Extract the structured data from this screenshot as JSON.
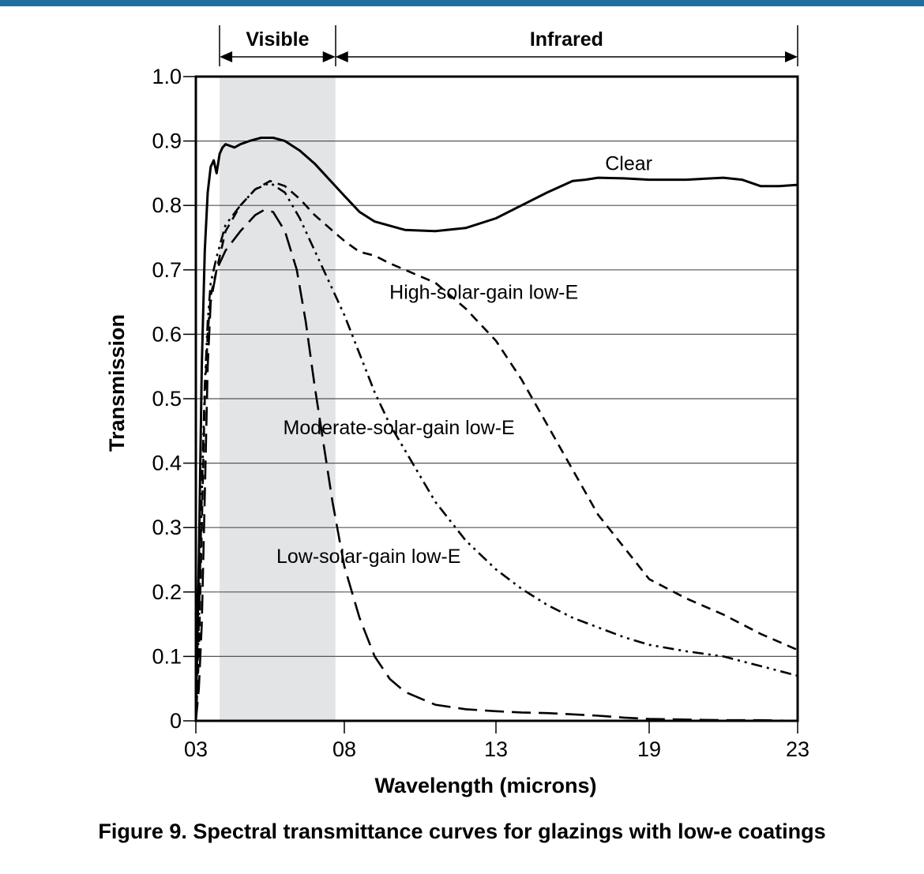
{
  "figure": {
    "caption": "Figure 9. Spectral transmittance curves for glazings with low-e coatings",
    "accent_color": "#1f6fa0"
  },
  "chart_data": {
    "type": "line",
    "xlabel": "Wavelength (microns)",
    "ylabel": "Transmission",
    "x_ticks": [
      {
        "value": 0.3,
        "label": "03"
      },
      {
        "value": 0.8,
        "label": "08"
      },
      {
        "value": 1.3,
        "label": "13"
      },
      {
        "value": 1.9,
        "label": "19"
      },
      {
        "value": 2.3,
        "label": "23"
      }
    ],
    "y_ticks": [
      0,
      0.1,
      0.2,
      0.3,
      0.4,
      0.5,
      0.6,
      0.7,
      0.8,
      0.9,
      1.0
    ],
    "y_tick_labels": [
      "0",
      "0.1",
      "0.2",
      "0.3",
      "0.4",
      "0.5",
      "0.6",
      "0.7",
      "0.8",
      "0.9",
      "1.0"
    ],
    "ylim": [
      0,
      1.0
    ],
    "grid": "horizontal",
    "regions": [
      {
        "label": "Visible",
        "x_start": 0.38,
        "x_end": 0.77,
        "shaded": true
      },
      {
        "label": "Infrared",
        "x_start": 0.77,
        "x_end": 2.3,
        "shaded": false
      }
    ],
    "series": [
      {
        "name": "Clear",
        "style": "solid",
        "points": [
          [
            0.3,
            0.0
          ],
          [
            0.31,
            0.25
          ],
          [
            0.32,
            0.55
          ],
          [
            0.33,
            0.73
          ],
          [
            0.34,
            0.82
          ],
          [
            0.35,
            0.86
          ],
          [
            0.36,
            0.87
          ],
          [
            0.37,
            0.85
          ],
          [
            0.38,
            0.88
          ],
          [
            0.39,
            0.89
          ],
          [
            0.4,
            0.895
          ],
          [
            0.43,
            0.89
          ],
          [
            0.45,
            0.895
          ],
          [
            0.48,
            0.9
          ],
          [
            0.52,
            0.905
          ],
          [
            0.56,
            0.905
          ],
          [
            0.6,
            0.9
          ],
          [
            0.65,
            0.885
          ],
          [
            0.7,
            0.865
          ],
          [
            0.75,
            0.84
          ],
          [
            0.8,
            0.815
          ],
          [
            0.85,
            0.79
          ],
          [
            0.9,
            0.775
          ],
          [
            1.0,
            0.762
          ],
          [
            1.1,
            0.76
          ],
          [
            1.2,
            0.765
          ],
          [
            1.3,
            0.78
          ],
          [
            1.4,
            0.8
          ],
          [
            1.5,
            0.82
          ],
          [
            1.6,
            0.838
          ],
          [
            1.65,
            0.84
          ],
          [
            1.7,
            0.843
          ],
          [
            1.8,
            0.842
          ],
          [
            1.9,
            0.84
          ],
          [
            2.0,
            0.84
          ],
          [
            2.1,
            0.843
          ],
          [
            2.15,
            0.84
          ],
          [
            2.2,
            0.83
          ],
          [
            2.25,
            0.83
          ],
          [
            2.3,
            0.832
          ]
        ]
      },
      {
        "name": "High-solar-gain low-E",
        "style": "dashed",
        "points": [
          [
            0.3,
            0.0
          ],
          [
            0.31,
            0.1
          ],
          [
            0.32,
            0.3
          ],
          [
            0.33,
            0.5
          ],
          [
            0.34,
            0.6
          ],
          [
            0.35,
            0.66
          ],
          [
            0.37,
            0.7
          ],
          [
            0.4,
            0.76
          ],
          [
            0.45,
            0.8
          ],
          [
            0.5,
            0.825
          ],
          [
            0.55,
            0.838
          ],
          [
            0.6,
            0.83
          ],
          [
            0.65,
            0.81
          ],
          [
            0.7,
            0.785
          ],
          [
            0.75,
            0.765
          ],
          [
            0.8,
            0.745
          ],
          [
            0.85,
            0.728
          ],
          [
            0.9,
            0.722
          ],
          [
            0.95,
            0.71
          ],
          [
            1.0,
            0.7
          ],
          [
            1.1,
            0.68
          ],
          [
            1.2,
            0.64
          ],
          [
            1.3,
            0.59
          ],
          [
            1.4,
            0.53
          ],
          [
            1.5,
            0.46
          ],
          [
            1.6,
            0.39
          ],
          [
            1.7,
            0.32
          ],
          [
            1.8,
            0.27
          ],
          [
            1.9,
            0.22
          ],
          [
            2.0,
            0.19
          ],
          [
            2.1,
            0.165
          ],
          [
            2.2,
            0.135
          ],
          [
            2.3,
            0.11
          ]
        ]
      },
      {
        "name": "Moderate-solar-gain low-E",
        "style": "dash-dot-dot",
        "points": [
          [
            0.3,
            0.0
          ],
          [
            0.31,
            0.15
          ],
          [
            0.32,
            0.35
          ],
          [
            0.33,
            0.52
          ],
          [
            0.34,
            0.62
          ],
          [
            0.35,
            0.68
          ],
          [
            0.37,
            0.72
          ],
          [
            0.4,
            0.77
          ],
          [
            0.45,
            0.8
          ],
          [
            0.5,
            0.825
          ],
          [
            0.55,
            0.835
          ],
          [
            0.6,
            0.82
          ],
          [
            0.65,
            0.78
          ],
          [
            0.7,
            0.73
          ],
          [
            0.75,
            0.68
          ],
          [
            0.8,
            0.63
          ],
          [
            0.85,
            0.57
          ],
          [
            0.9,
            0.51
          ],
          [
            0.95,
            0.46
          ],
          [
            1.0,
            0.42
          ],
          [
            1.1,
            0.34
          ],
          [
            1.2,
            0.28
          ],
          [
            1.3,
            0.235
          ],
          [
            1.4,
            0.205
          ],
          [
            1.5,
            0.18
          ],
          [
            1.6,
            0.16
          ],
          [
            1.7,
            0.145
          ],
          [
            1.8,
            0.13
          ],
          [
            1.9,
            0.118
          ],
          [
            2.0,
            0.108
          ],
          [
            2.1,
            0.1
          ],
          [
            2.2,
            0.085
          ],
          [
            2.3,
            0.07
          ]
        ]
      },
      {
        "name": "Low-solar-gain low-E",
        "style": "long-dashed",
        "points": [
          [
            0.3,
            0.0
          ],
          [
            0.31,
            0.05
          ],
          [
            0.32,
            0.15
          ],
          [
            0.33,
            0.35
          ],
          [
            0.34,
            0.55
          ],
          [
            0.35,
            0.65
          ],
          [
            0.37,
            0.7
          ],
          [
            0.4,
            0.73
          ],
          [
            0.45,
            0.76
          ],
          [
            0.5,
            0.785
          ],
          [
            0.53,
            0.793
          ],
          [
            0.56,
            0.79
          ],
          [
            0.6,
            0.76
          ],
          [
            0.64,
            0.7
          ],
          [
            0.67,
            0.62
          ],
          [
            0.7,
            0.52
          ],
          [
            0.73,
            0.43
          ],
          [
            0.76,
            0.34
          ],
          [
            0.8,
            0.24
          ],
          [
            0.85,
            0.16
          ],
          [
            0.9,
            0.1
          ],
          [
            0.95,
            0.065
          ],
          [
            1.0,
            0.045
          ],
          [
            1.1,
            0.025
          ],
          [
            1.2,
            0.018
          ],
          [
            1.3,
            0.015
          ],
          [
            1.4,
            0.013
          ],
          [
            1.5,
            0.012
          ],
          [
            1.6,
            0.01
          ],
          [
            1.7,
            0.008
          ],
          [
            1.8,
            0.005
          ],
          [
            1.9,
            0.003
          ],
          [
            2.0,
            0.002
          ],
          [
            2.1,
            0.001
          ],
          [
            2.2,
            0.001
          ],
          [
            2.3,
            0.0
          ]
        ]
      }
    ],
    "series_labels": [
      {
        "series": "Clear",
        "text": "Clear",
        "x": 1.82,
        "y": 0.855
      },
      {
        "series": "High-solar-gain low-E",
        "text": "High-solar-gain low-E",
        "x": 1.26,
        "y": 0.655
      },
      {
        "series": "Moderate-solar-gain low-E",
        "text": "Moderate-solar-gain low-E",
        "x": 0.98,
        "y": 0.445
      },
      {
        "series": "Low-solar-gain low-E",
        "text": "Low-solar-gain low-E",
        "x": 0.88,
        "y": 0.245
      }
    ]
  }
}
